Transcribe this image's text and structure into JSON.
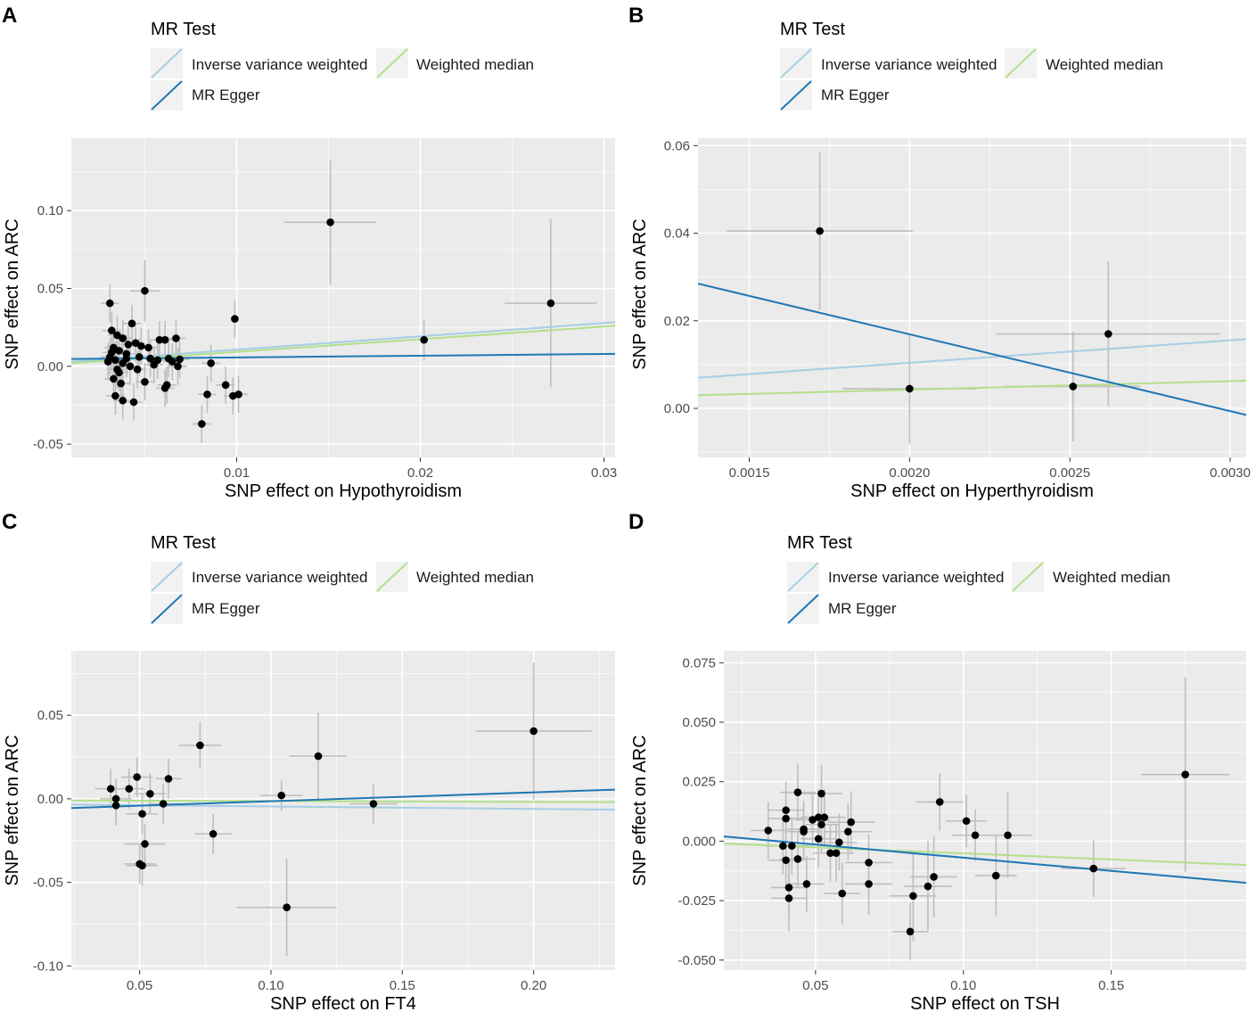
{
  "legend": {
    "title": "MR Test",
    "items": [
      {
        "label": "Inverse variance weighted",
        "color": "#a6cee3",
        "key": "ivw"
      },
      {
        "label": "MR Egger",
        "color": "#1f78b4",
        "key": "egger"
      },
      {
        "label": "Weighted median",
        "color": "#b2df8a",
        "key": "wm"
      }
    ]
  },
  "colors": {
    "panel_bg": "#ebebeb",
    "grid": "#ffffff",
    "point": "#000000",
    "errorbar": "#bebebe"
  },
  "chart_data": [
    {
      "panel": "A",
      "type": "scatter",
      "xlabel": "SNP effect on Hypothyroidism",
      "ylabel": "SNP effect on ARC",
      "xlim": [
        0.001,
        0.0306
      ],
      "ylim": [
        -0.0585,
        0.1465
      ],
      "xticks": [
        {
          "v": 0.01,
          "label": "0.01"
        },
        {
          "v": 0.02,
          "label": "0.02"
        },
        {
          "v": 0.03,
          "label": "0.03"
        }
      ],
      "yticks": [
        {
          "v": -0.05,
          "label": "-0.05"
        },
        {
          "v": 0.0,
          "label": "0.00"
        },
        {
          "v": 0.05,
          "label": "0.05"
        },
        {
          "v": 0.1,
          "label": "0.10"
        }
      ],
      "lines": {
        "ivw": [
          0.001,
          0.003,
          0.0306,
          0.0283
        ],
        "egger": [
          0.001,
          0.0047,
          0.0306,
          0.008
        ],
        "wm": [
          0.001,
          0.002,
          0.0306,
          0.026
        ]
      },
      "points": [
        [
          0.0151,
          0.0925,
          0.0025,
          0.04
        ],
        [
          0.0271,
          0.0405,
          0.0025,
          0.054
        ],
        [
          0.0202,
          0.017,
          0.0,
          0.013
        ],
        [
          0.0099,
          0.0305,
          0.0,
          0.012
        ],
        [
          0.005,
          0.0485,
          0.0008,
          0.02
        ],
        [
          0.0031,
          0.0405,
          0.0005,
          0.012
        ],
        [
          0.0032,
          0.023,
          0.0005,
          0.012
        ],
        [
          0.0043,
          0.0275,
          0.0005,
          0.012
        ],
        [
          0.0035,
          0.02,
          0.0005,
          0.012
        ],
        [
          0.0038,
          0.018,
          0.0005,
          0.012
        ],
        [
          0.0045,
          0.015,
          0.0005,
          0.012
        ],
        [
          0.0048,
          0.013,
          0.0005,
          0.012
        ],
        [
          0.0033,
          0.012,
          0.0005,
          0.012
        ],
        [
          0.0036,
          0.01,
          0.0005,
          0.012
        ],
        [
          0.004,
          0.008,
          0.0005,
          0.012
        ],
        [
          0.0031,
          0.006,
          0.0005,
          0.012
        ],
        [
          0.0034,
          0.004,
          0.0005,
          0.012
        ],
        [
          0.0038,
          0.002,
          0.0005,
          0.012
        ],
        [
          0.0042,
          0.0,
          0.0005,
          0.012
        ],
        [
          0.0046,
          -0.002,
          0.0005,
          0.012
        ],
        [
          0.0036,
          -0.004,
          0.0005,
          0.012
        ],
        [
          0.0033,
          -0.008,
          0.0005,
          0.012
        ],
        [
          0.0037,
          -0.011,
          0.0005,
          0.012
        ],
        [
          0.0034,
          -0.019,
          0.0005,
          0.012
        ],
        [
          0.0038,
          -0.022,
          0.0005,
          0.012
        ],
        [
          0.0044,
          -0.023,
          0.0005,
          0.012
        ],
        [
          0.005,
          -0.01,
          0.0005,
          0.012
        ],
        [
          0.0053,
          0.005,
          0.0005,
          0.012
        ],
        [
          0.0055,
          0.001,
          0.0005,
          0.012
        ],
        [
          0.0058,
          0.017,
          0.0005,
          0.012
        ],
        [
          0.0061,
          0.017,
          0.0005,
          0.012
        ],
        [
          0.0067,
          0.018,
          0.0005,
          0.012
        ],
        [
          0.0063,
          0.005,
          0.0005,
          0.012
        ],
        [
          0.0065,
          0.003,
          0.0005,
          0.012
        ],
        [
          0.0068,
          0.0,
          0.0005,
          0.012
        ],
        [
          0.0069,
          0.0045,
          0.0005,
          0.012
        ],
        [
          0.0061,
          -0.014,
          0.0005,
          0.012
        ],
        [
          0.0062,
          -0.012,
          0.0005,
          0.012
        ],
        [
          0.0081,
          -0.037,
          0.0005,
          0.012
        ],
        [
          0.0084,
          -0.018,
          0.0005,
          0.012
        ],
        [
          0.0086,
          0.002,
          0.0005,
          0.012
        ],
        [
          0.0094,
          -0.012,
          0.0005,
          0.012
        ],
        [
          0.0098,
          -0.019,
          0.0005,
          0.012
        ],
        [
          0.0101,
          -0.018,
          0.0005,
          0.012
        ],
        [
          0.0052,
          0.012,
          0.0005,
          0.012
        ],
        [
          0.0041,
          0.014,
          0.0005,
          0.012
        ],
        [
          0.0032,
          0.009,
          0.0005,
          0.012
        ],
        [
          0.003,
          0.003,
          0.0005,
          0.012
        ],
        [
          0.0035,
          -0.002,
          0.0005,
          0.012
        ],
        [
          0.004,
          0.005,
          0.0005,
          0.012
        ],
        [
          0.0057,
          0.004,
          0.0005,
          0.012
        ],
        [
          0.0047,
          0.006,
          0.0005,
          0.012
        ]
      ]
    },
    {
      "panel": "B",
      "type": "scatter",
      "xlabel": "SNP effect on Hyperthyroidism",
      "ylabel": "SNP effect on ARC",
      "xlim": [
        0.00134,
        0.00305
      ],
      "ylim": [
        -0.0112,
        0.0617
      ],
      "xticks": [
        {
          "v": 0.0015,
          "label": "0.0015"
        },
        {
          "v": 0.002,
          "label": "0.0020"
        },
        {
          "v": 0.0025,
          "label": "0.0025"
        },
        {
          "v": 0.003,
          "label": "0.0030"
        }
      ],
      "yticks": [
        {
          "v": 0.0,
          "label": "0.00"
        },
        {
          "v": 0.02,
          "label": "0.02"
        },
        {
          "v": 0.04,
          "label": "0.04"
        },
        {
          "v": 0.06,
          "label": "0.06"
        }
      ],
      "lines": {
        "ivw": [
          0.00134,
          0.007,
          0.00305,
          0.0158
        ],
        "egger": [
          0.00134,
          0.0285,
          0.00305,
          -0.0015
        ],
        "wm": [
          0.00134,
          0.003,
          0.00305,
          0.0063
        ]
      },
      "points": [
        [
          0.00172,
          0.0405,
          0.00029,
          0.018
        ],
        [
          0.00262,
          0.017,
          0.00035,
          0.0165
        ],
        [
          0.002,
          0.0045,
          0.00021,
          0.0125
        ],
        [
          0.00251,
          0.005,
          0.00021,
          0.0125
        ]
      ]
    },
    {
      "panel": "C",
      "type": "scatter",
      "xlabel": "SNP effect on FT4",
      "ylabel": "SNP effect on ARC",
      "xlim": [
        0.024,
        0.231
      ],
      "ylim": [
        -0.1025,
        0.0885
      ],
      "xticks": [
        {
          "v": 0.05,
          "label": "0.05"
        },
        {
          "v": 0.1,
          "label": "0.10"
        },
        {
          "v": 0.15,
          "label": "0.15"
        },
        {
          "v": 0.2,
          "label": "0.20"
        }
      ],
      "yticks": [
        {
          "v": -0.1,
          "label": "-0.10"
        },
        {
          "v": -0.05,
          "label": "-0.05"
        },
        {
          "v": 0.0,
          "label": "0.00"
        },
        {
          "v": 0.05,
          "label": "0.05"
        }
      ],
      "lines": {
        "ivw": [
          0.024,
          -0.0035,
          0.231,
          -0.0065
        ],
        "egger": [
          0.024,
          -0.0055,
          0.231,
          0.0055
        ],
        "wm": [
          0.024,
          -0.001,
          0.231,
          -0.002
        ]
      },
      "points": [
        [
          0.2,
          0.0405,
          0.022,
          0.041
        ],
        [
          0.118,
          0.0255,
          0.011,
          0.026
        ],
        [
          0.073,
          0.032,
          0.008,
          0.014
        ],
        [
          0.061,
          0.012,
          0.005,
          0.012
        ],
        [
          0.049,
          0.013,
          0.006,
          0.012
        ],
        [
          0.046,
          0.006,
          0.006,
          0.012
        ],
        [
          0.039,
          0.006,
          0.006,
          0.012
        ],
        [
          0.054,
          0.003,
          0.006,
          0.012
        ],
        [
          0.041,
          0.0,
          0.006,
          0.012
        ],
        [
          0.041,
          -0.004,
          0.006,
          0.012
        ],
        [
          0.059,
          -0.003,
          0.006,
          0.012
        ],
        [
          0.051,
          -0.009,
          0.006,
          0.012
        ],
        [
          0.052,
          -0.027,
          0.008,
          0.012
        ],
        [
          0.05,
          -0.039,
          0.006,
          0.012
        ],
        [
          0.051,
          -0.04,
          0.006,
          0.012
        ],
        [
          0.078,
          -0.021,
          0.007,
          0.012
        ],
        [
          0.104,
          0.002,
          0.008,
          0.009
        ],
        [
          0.139,
          -0.003,
          0.009,
          0.012
        ],
        [
          0.106,
          -0.065,
          0.019,
          0.029
        ]
      ]
    },
    {
      "panel": "D",
      "type": "scatter",
      "xlabel": "SNP effect on TSH",
      "ylabel": "SNP effect on ARC",
      "xlim": [
        0.019,
        0.1956
      ],
      "ylim": [
        -0.0542,
        0.08
      ],
      "xticks": [
        {
          "v": 0.05,
          "label": "0.05"
        },
        {
          "v": 0.1,
          "label": "0.10"
        },
        {
          "v": 0.15,
          "label": "0.15"
        }
      ],
      "yticks": [
        {
          "v": -0.05,
          "label": "-0.050"
        },
        {
          "v": -0.025,
          "label": "-0.025"
        },
        {
          "v": 0.0,
          "label": "0.000"
        },
        {
          "v": 0.025,
          "label": "0.025"
        },
        {
          "v": 0.05,
          "label": "0.050"
        },
        {
          "v": 0.075,
          "label": "0.075"
        }
      ],
      "lines": {
        "ivw": [
          0.019,
          0.002,
          0.1956,
          -0.0175
        ],
        "egger": [
          0.019,
          0.002,
          0.1956,
          -0.0175
        ],
        "wm": [
          0.019,
          -0.001,
          0.1956,
          -0.01
        ]
      },
      "points": [
        [
          0.175,
          0.028,
          0.015,
          0.041
        ],
        [
          0.144,
          -0.0115,
          0.011,
          0.012
        ],
        [
          0.115,
          0.0025,
          0.008,
          0.018
        ],
        [
          0.111,
          -0.0145,
          0.007,
          0.017
        ],
        [
          0.104,
          0.0025,
          0.008,
          0.011
        ],
        [
          0.101,
          0.0085,
          0.007,
          0.011
        ],
        [
          0.092,
          0.0165,
          0.008,
          0.012
        ],
        [
          0.09,
          -0.015,
          0.008,
          0.017
        ],
        [
          0.088,
          -0.019,
          0.008,
          0.019
        ],
        [
          0.083,
          -0.023,
          0.008,
          0.019
        ],
        [
          0.082,
          -0.038,
          0.006,
          0.012
        ],
        [
          0.068,
          -0.009,
          0.008,
          0.012
        ],
        [
          0.068,
          -0.018,
          0.008,
          0.013
        ],
        [
          0.062,
          0.008,
          0.008,
          0.013
        ],
        [
          0.061,
          0.004,
          0.008,
          0.012
        ],
        [
          0.059,
          -0.022,
          0.006,
          0.013
        ],
        [
          0.058,
          -0.0005,
          0.006,
          0.012
        ],
        [
          0.057,
          -0.005,
          0.006,
          0.012
        ],
        [
          0.055,
          -0.005,
          0.006,
          0.012
        ],
        [
          0.053,
          0.01,
          0.007,
          0.012
        ],
        [
          0.052,
          0.02,
          0.007,
          0.012
        ],
        [
          0.052,
          0.007,
          0.006,
          0.012
        ],
        [
          0.051,
          0.01,
          0.006,
          0.012
        ],
        [
          0.051,
          0.001,
          0.006,
          0.012
        ],
        [
          0.049,
          0.009,
          0.006,
          0.012
        ],
        [
          0.047,
          -0.018,
          0.006,
          0.012
        ],
        [
          0.046,
          0.005,
          0.006,
          0.012
        ],
        [
          0.046,
          0.004,
          0.006,
          0.012
        ],
        [
          0.044,
          0.0205,
          0.006,
          0.012
        ],
        [
          0.044,
          -0.0075,
          0.006,
          0.012
        ],
        [
          0.042,
          -0.002,
          0.006,
          0.012
        ],
        [
          0.041,
          -0.0195,
          0.006,
          0.012
        ],
        [
          0.041,
          -0.024,
          0.006,
          0.014
        ],
        [
          0.04,
          0.013,
          0.006,
          0.012
        ],
        [
          0.04,
          0.0095,
          0.006,
          0.012
        ],
        [
          0.04,
          -0.008,
          0.006,
          0.012
        ],
        [
          0.039,
          -0.002,
          0.006,
          0.012
        ],
        [
          0.034,
          0.0045,
          0.006,
          0.012
        ]
      ]
    }
  ]
}
